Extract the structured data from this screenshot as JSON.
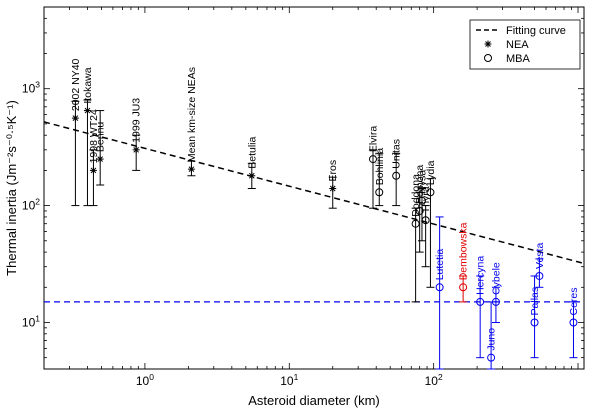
{
  "chart_data": {
    "type": "scatter",
    "xlabel": "Asteroid diameter (km)",
    "ylabel": "Thermal inertia (Jm⁻²s⁻⁰·⁵K⁻¹)",
    "xscale": "log",
    "yscale": "log",
    "xlim": [
      0.2,
      1100
    ],
    "ylim": [
      4,
      5000
    ],
    "x_tick_labels": [
      {
        "value": 1,
        "base": "10",
        "exp": "0"
      },
      {
        "value": 10,
        "base": "10",
        "exp": "1"
      },
      {
        "value": 100,
        "base": "10",
        "exp": "2"
      }
    ],
    "y_tick_labels": [
      {
        "value": 10,
        "base": "10",
        "exp": "1"
      },
      {
        "value": 100,
        "base": "10",
        "exp": "2"
      },
      {
        "value": 1000,
        "base": "10",
        "exp": "3"
      }
    ],
    "legend": {
      "position": "top-right",
      "entries": [
        {
          "label": "Fitting curve",
          "style": "dashed-line"
        },
        {
          "label": "NEA",
          "style": "star"
        },
        {
          "label": "MBA",
          "style": "circle"
        }
      ]
    },
    "fitting_curve": {
      "x": [
        0.2,
        1100
      ],
      "y": [
        520,
        32
      ]
    },
    "threshold_line": {
      "y": 15,
      "color": "#0000ee"
    },
    "nea": [
      {
        "name": "2002 NY40",
        "x": 0.33,
        "y": 560,
        "lo": 100,
        "hi": 780
      },
      {
        "name": "Itokawa",
        "x": 0.4,
        "y": 650,
        "lo": 100,
        "hi": 800
      },
      {
        "name": "1998 WT24",
        "x": 0.44,
        "y": 200,
        "lo": 100,
        "hi": 300
      },
      {
        "name": "Bennu",
        "x": 0.49,
        "y": 250,
        "lo": 150,
        "hi": 650
      },
      {
        "name": "1999 JU3",
        "x": 0.87,
        "y": 300,
        "lo": 200,
        "hi": 400
      },
      {
        "name": "Mean km-size NEAs",
        "x": 2.1,
        "y": 205,
        "lo": 180,
        "hi": 240
      },
      {
        "name": "Betulia",
        "x": 5.5,
        "y": 180,
        "lo": 140,
        "hi": 230
      },
      {
        "name": "Eros",
        "x": 20,
        "y": 140,
        "lo": 95,
        "hi": 175
      }
    ],
    "mba_black": [
      {
        "name": "Elvira",
        "x": 38,
        "y": 250,
        "lo": 95,
        "hi": 300
      },
      {
        "name": "Bohlinia",
        "x": 42,
        "y": 130,
        "lo": 100,
        "hi": 280
      },
      {
        "name": "Unitas",
        "x": 55,
        "y": 180,
        "lo": 100,
        "hi": 280
      },
      {
        "name": "Doddona",
        "x": 75,
        "y": 70,
        "lo": 15,
        "hi": 95
      },
      {
        "name": "Pomona",
        "x": 80,
        "y": 90,
        "lo": 40,
        "hi": 130
      },
      {
        "name": "Nysa",
        "x": 83,
        "y": 110,
        "lo": 50,
        "hi": 140
      },
      {
        "name": "Thyra",
        "x": 88,
        "y": 75,
        "lo": 30,
        "hi": 100
      },
      {
        "name": "Lydia",
        "x": 95,
        "y": 130,
        "lo": 20,
        "hi": 170
      }
    ],
    "mba_blue": [
      {
        "name": "Lutetia",
        "x": 110,
        "y": 20,
        "lo": 4,
        "hi": 80,
        "color": "#0000ee"
      },
      {
        "name": "Hercyna",
        "x": 210,
        "y": 15,
        "lo": 5,
        "hi": 25,
        "color": "#0000ee"
      },
      {
        "name": "Juno",
        "x": 250,
        "y": 5,
        "lo": 4,
        "hi": 15,
        "color": "#0000ee"
      },
      {
        "name": "Cybele",
        "x": 270,
        "y": 15,
        "lo": 10,
        "hi": 20,
        "color": "#0000ee"
      },
      {
        "name": "Pallas",
        "x": 500,
        "y": 10,
        "lo": 5,
        "hi": 25,
        "color": "#0000ee"
      },
      {
        "name": "Vesta",
        "x": 540,
        "y": 25,
        "lo": 20,
        "hi": 35,
        "color": "#0000ee"
      },
      {
        "name": "Ceres",
        "x": 930,
        "y": 10,
        "lo": 5,
        "hi": 15,
        "color": "#0000ee"
      },
      {
        "name": "Dembowska",
        "x": 160,
        "y": 20,
        "lo": 15,
        "hi": 25,
        "color": "#e00000"
      }
    ]
  }
}
